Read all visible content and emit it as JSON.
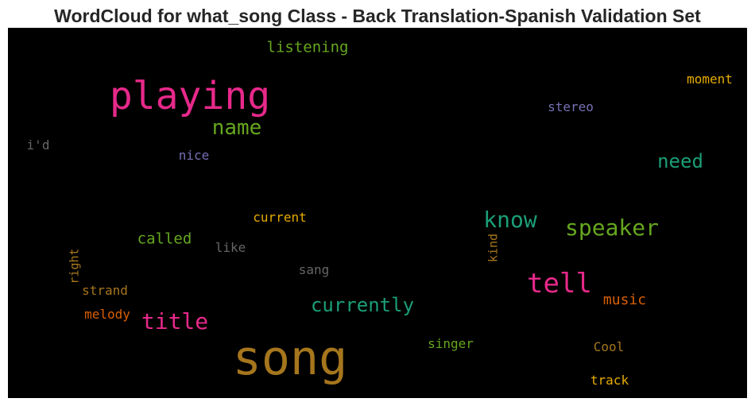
{
  "chart_data": {
    "type": "wordcloud",
    "title": "WordCloud for what_song Class - Back Translation-Spanish Validation Set",
    "background": "#000000",
    "words": [
      {
        "text": "song",
        "size": 60,
        "color": "#a6761d",
        "orientation": "horizontal"
      },
      {
        "text": "playing",
        "size": 48,
        "color": "#e7298a",
        "orientation": "horizontal"
      },
      {
        "text": "tell",
        "size": 34,
        "color": "#e7298a",
        "orientation": "horizontal"
      },
      {
        "text": "speaker",
        "size": 28,
        "color": "#66a61e",
        "orientation": "horizontal"
      },
      {
        "text": "know",
        "size": 28,
        "color": "#1b9e77",
        "orientation": "horizontal"
      },
      {
        "text": "title",
        "size": 28,
        "color": "#e7298a",
        "orientation": "horizontal"
      },
      {
        "text": "name",
        "size": 26,
        "color": "#66a61e",
        "orientation": "horizontal"
      },
      {
        "text": "currently",
        "size": 24,
        "color": "#1b9e77",
        "orientation": "horizontal"
      },
      {
        "text": "need",
        "size": 24,
        "color": "#1b9e77",
        "orientation": "horizontal"
      },
      {
        "text": "listening",
        "size": 19,
        "color": "#66a61e",
        "orientation": "horizontal"
      },
      {
        "text": "called",
        "size": 19,
        "color": "#66a61e",
        "orientation": "horizontal"
      },
      {
        "text": "music",
        "size": 18,
        "color": "#d95f02",
        "orientation": "horizontal"
      },
      {
        "text": "moment",
        "size": 16,
        "color": "#e6ab02",
        "orientation": "horizontal"
      },
      {
        "text": "stereo",
        "size": 16,
        "color": "#7570b3",
        "orientation": "horizontal"
      },
      {
        "text": "current",
        "size": 16,
        "color": "#e6ab02",
        "orientation": "horizontal"
      },
      {
        "text": "singer",
        "size": 16,
        "color": "#66a61e",
        "orientation": "horizontal"
      },
      {
        "text": "Cool",
        "size": 16,
        "color": "#a6761d",
        "orientation": "horizontal"
      },
      {
        "text": "track",
        "size": 16,
        "color": "#e6ab02",
        "orientation": "horizontal"
      },
      {
        "text": "strand",
        "size": 16,
        "color": "#a6761d",
        "orientation": "horizontal"
      },
      {
        "text": "melody",
        "size": 16,
        "color": "#d95f02",
        "orientation": "horizontal"
      },
      {
        "text": "nice",
        "size": 16,
        "color": "#7570b3",
        "orientation": "horizontal"
      },
      {
        "text": "like",
        "size": 16,
        "color": "#666666",
        "orientation": "horizontal"
      },
      {
        "text": "sang",
        "size": 16,
        "color": "#666666",
        "orientation": "horizontal"
      },
      {
        "text": "i'd",
        "size": 16,
        "color": "#666666",
        "orientation": "horizontal"
      },
      {
        "text": "right",
        "size": 15,
        "color": "#a6761d",
        "orientation": "vertical"
      },
      {
        "text": "kind",
        "size": 15,
        "color": "#a6761d",
        "orientation": "vertical"
      }
    ]
  }
}
